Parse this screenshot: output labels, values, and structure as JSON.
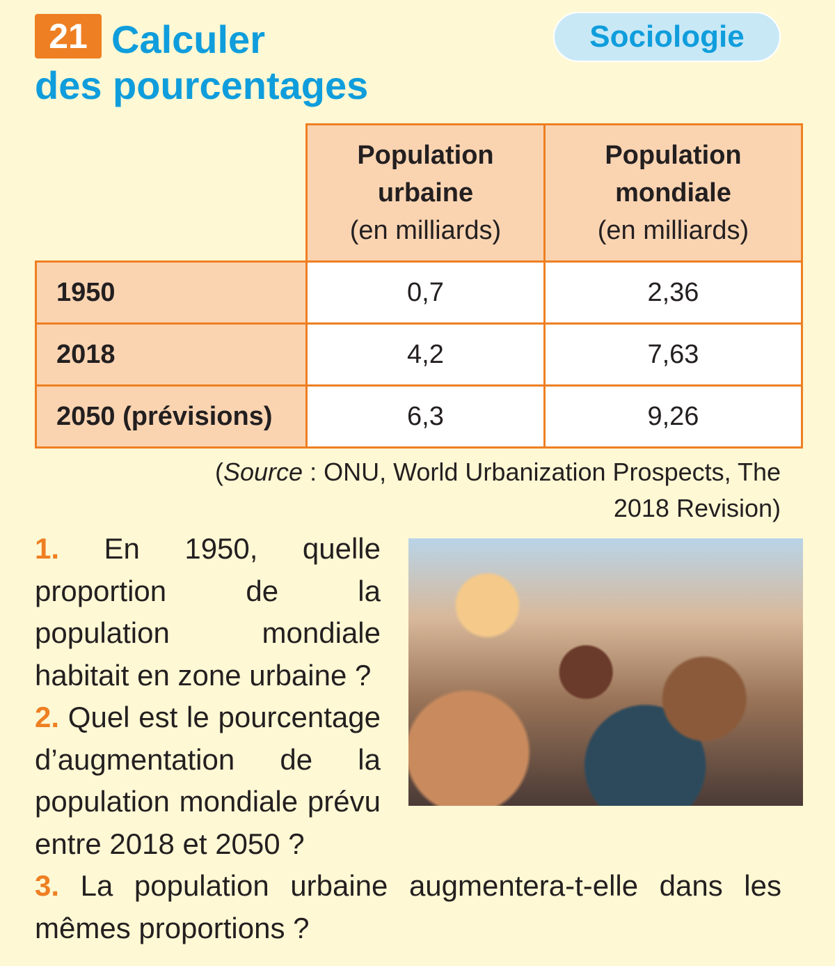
{
  "exercise": {
    "number": "21",
    "title_line1": "Calculer",
    "title_line2": "des pourcentages",
    "category": "Sociologie"
  },
  "table": {
    "headers": [
      {
        "title": "Population urbaine",
        "unit": "(en milliards)"
      },
      {
        "title": "Population mondiale",
        "unit": "(en milliards)"
      }
    ],
    "rows": [
      {
        "year": "1950",
        "urban": "0,7",
        "world": "2,36"
      },
      {
        "year": "2018",
        "urban": "4,2",
        "world": "7,63"
      },
      {
        "year": "2050 (prévisions)",
        "urban": "6,3",
        "world": "9,26"
      }
    ]
  },
  "source": {
    "open": "(",
    "label": "Source",
    "text": " : ONU, World Urbanization Prospects, The 2018 Revision)"
  },
  "questions": [
    {
      "num": "1.",
      "text": "En 1950, quelle proportion de la population mondiale habitait en zone urbaine ?"
    },
    {
      "num": "2.",
      "text": "Quel est le pourcentage d’augmentation de la population mondiale prévu entre 2018 et 2050 ?"
    },
    {
      "num": "3.",
      "text": "La population urbaine augmentera-t-elle dans les mêmes proportions ?"
    }
  ],
  "colors": {
    "accent": "#ee7f22",
    "title": "#0f9ddc",
    "background": "#fef8d4",
    "header_fill": "#fad4b1"
  }
}
